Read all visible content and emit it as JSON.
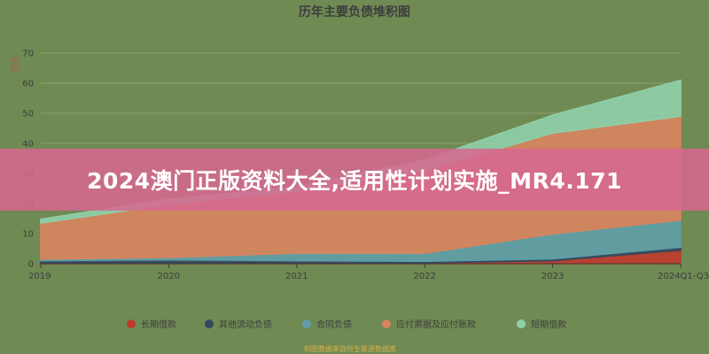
{
  "chart_data": {
    "type": "area",
    "stacked": true,
    "title": "历年主要负债堆积图",
    "y_unit": "亿元",
    "categories": [
      "2019",
      "2020",
      "2021",
      "2022",
      "2023",
      "2024Q1-Q3"
    ],
    "y_ticks": [
      "0",
      "10",
      "20",
      "30",
      "40",
      "50",
      "60",
      "70"
    ],
    "ylim": [
      0,
      70
    ],
    "grid": true,
    "legend_position": "bottom",
    "series": [
      {
        "name": "长期借款",
        "color": "#c0392b",
        "values": [
          0.2,
          0.3,
          0.3,
          0.3,
          1.0,
          4.5
        ]
      },
      {
        "name": "其他流动负债",
        "color": "#34495e",
        "values": [
          0.8,
          1.0,
          0.7,
          0.5,
          0.6,
          1.0
        ]
      },
      {
        "name": "合同负债",
        "color": "#5f9ea8",
        "values": [
          0.5,
          0.8,
          2.5,
          2.7,
          8.3,
          9.0
        ]
      },
      {
        "name": "应付票据及应付账款",
        "color": "#d9845f",
        "values": [
          12.0,
          17.6,
          20.5,
          27.5,
          33.5,
          34.5
        ]
      },
      {
        "name": "短期借款",
        "color": "#8fcfa8",
        "values": [
          1.3,
          1.8,
          1.5,
          3.5,
          6.0,
          12.0
        ]
      }
    ],
    "footer_note": "制图数据来自恒生聚源数据库"
  },
  "banner": {
    "text": "2024澳门正版资料大全,适用性计划实施_MR4.171"
  }
}
